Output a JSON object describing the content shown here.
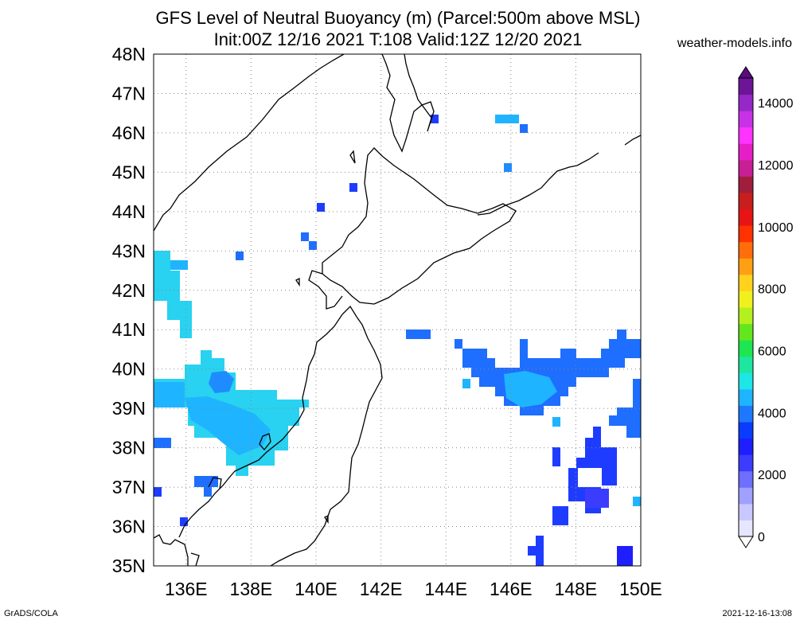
{
  "title_line1": "GFS Level of Neutral Buoyancy (m) (Parcel:500m above MSL)",
  "title_line2": "Init:00Z 12/16 2021 T:108 Valid:12Z 12/20 2021",
  "site": "weather-models.info",
  "footer_left": "GrADS/COLA",
  "footer_right": "2021-12-16-13:08",
  "map_data": {
    "type": "map",
    "lon_range": [
      135,
      150
    ],
    "lat_range": [
      35,
      48
    ],
    "x_ticks": [
      "136E",
      "138E",
      "140E",
      "142E",
      "144E",
      "146E",
      "148E",
      "150E"
    ],
    "y_ticks": [
      "35N",
      "36N",
      "37N",
      "38N",
      "39N",
      "40N",
      "41N",
      "42N",
      "43N",
      "44N",
      "45N",
      "46N",
      "47N",
      "48N"
    ],
    "grid": true,
    "colorbar": {
      "labels": [
        "0",
        "2000",
        "4000",
        "6000",
        "8000",
        "10000",
        "12000",
        "14000"
      ],
      "colors": [
        "#e6e6ff",
        "#c8c8ff",
        "#a0a0ff",
        "#6e6eff",
        "#3c3cff",
        "#1e1eff",
        "#0a3cff",
        "#1e78ff",
        "#1eb4ff",
        "#1ee6e6",
        "#1ee6a0",
        "#1ee650",
        "#64e61e",
        "#b4f01e",
        "#f0f01e",
        "#ffd21e",
        "#ffa014",
        "#ff6e0a",
        "#ff3200",
        "#e61414",
        "#c81e1e",
        "#a01e3c",
        "#c81e96",
        "#e61ec8",
        "#ff32ff",
        "#c832e6",
        "#9628c8",
        "#6e1496"
      ]
    }
  }
}
